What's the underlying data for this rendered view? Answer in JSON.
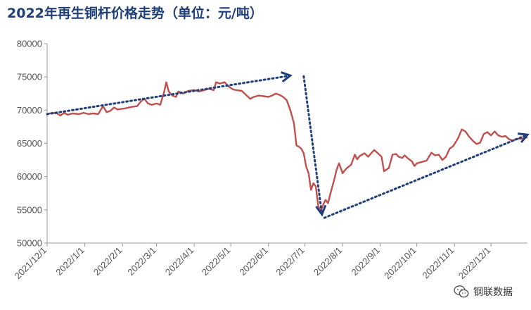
{
  "chart_data": {
    "type": "line",
    "title": "2022年再生铜杆价格走势（单位：元/吨）",
    "ylim": [
      50000,
      80000
    ],
    "yticks": [
      50000,
      55000,
      60000,
      65000,
      70000,
      75000,
      80000
    ],
    "xlim": [
      "2021-12-01",
      "2022-12-31"
    ],
    "xticks": [
      "2021/12/1",
      "2022/1/1",
      "2022/2/1",
      "2022/3/1",
      "2022/4/1",
      "2022/5/1",
      "2022/6/1",
      "2022/7/1",
      "2022/8/1",
      "2022/9/1",
      "2022/10/1",
      "2022/11/1",
      "2022/12/1"
    ],
    "series_color": "#c0504d",
    "trend_color": "#1f3f7a",
    "series": [
      {
        "points": [
          [
            "2021-12-01",
            69400
          ],
          [
            "2021-12-05",
            69600
          ],
          [
            "2021-12-09",
            69500
          ],
          [
            "2021-12-12",
            69200
          ],
          [
            "2021-12-15",
            69600
          ],
          [
            "2021-12-18",
            69300
          ],
          [
            "2021-12-22",
            69500
          ],
          [
            "2021-12-27",
            69400
          ],
          [
            "2021-12-31",
            69600
          ],
          [
            "2022-01-04",
            69400
          ],
          [
            "2022-01-08",
            69500
          ],
          [
            "2022-01-12",
            69400
          ],
          [
            "2022-01-16",
            70600
          ],
          [
            "2022-01-19",
            69700
          ],
          [
            "2022-01-22",
            69900
          ],
          [
            "2022-01-25",
            70400
          ],
          [
            "2022-01-28",
            70100
          ],
          [
            "2022-02-04",
            70300
          ],
          [
            "2022-02-09",
            70500
          ],
          [
            "2022-02-13",
            70600
          ],
          [
            "2022-02-16",
            71300
          ],
          [
            "2022-02-19",
            71700
          ],
          [
            "2022-02-22",
            71000
          ],
          [
            "2022-02-25",
            70800
          ],
          [
            "2022-03-01",
            71000
          ],
          [
            "2022-03-04",
            70800
          ],
          [
            "2022-03-07",
            72600
          ],
          [
            "2022-03-09",
            74200
          ],
          [
            "2022-03-11",
            72800
          ],
          [
            "2022-03-14",
            72200
          ],
          [
            "2022-03-17",
            72000
          ],
          [
            "2022-03-19",
            72800
          ],
          [
            "2022-03-23",
            72500
          ],
          [
            "2022-03-27",
            72900
          ],
          [
            "2022-04-01",
            73000
          ],
          [
            "2022-04-05",
            72800
          ],
          [
            "2022-04-09",
            73000
          ],
          [
            "2022-04-13",
            73200
          ],
          [
            "2022-04-17",
            73000
          ],
          [
            "2022-04-19",
            74200
          ],
          [
            "2022-04-22",
            74000
          ],
          [
            "2022-04-26",
            74200
          ],
          [
            "2022-04-29",
            73600
          ],
          [
            "2022-05-03",
            73100
          ],
          [
            "2022-05-06",
            73000
          ],
          [
            "2022-05-10",
            72900
          ],
          [
            "2022-05-13",
            72400
          ],
          [
            "2022-05-17",
            71700
          ],
          [
            "2022-05-20",
            72000
          ],
          [
            "2022-05-24",
            72200
          ],
          [
            "2022-05-28",
            72100
          ],
          [
            "2022-06-01",
            72000
          ],
          [
            "2022-06-04",
            72200
          ],
          [
            "2022-06-07",
            72500
          ],
          [
            "2022-06-10",
            72300
          ],
          [
            "2022-06-13",
            72000
          ],
          [
            "2022-06-16",
            71500
          ],
          [
            "2022-06-19",
            70000
          ],
          [
            "2022-06-22",
            68000
          ],
          [
            "2022-06-24",
            64700
          ],
          [
            "2022-06-26",
            64500
          ],
          [
            "2022-06-28",
            64200
          ],
          [
            "2022-06-30",
            63500
          ],
          [
            "2022-07-02",
            61500
          ],
          [
            "2022-07-04",
            60500
          ],
          [
            "2022-07-06",
            58000
          ],
          [
            "2022-07-08",
            59000
          ],
          [
            "2022-07-10",
            58500
          ],
          [
            "2022-07-12",
            55500
          ],
          [
            "2022-07-14",
            54800
          ],
          [
            "2022-07-16",
            55800
          ],
          [
            "2022-07-18",
            56500
          ],
          [
            "2022-07-20",
            56000
          ],
          [
            "2022-07-22",
            57500
          ],
          [
            "2022-07-25",
            59500
          ],
          [
            "2022-07-27",
            61000
          ],
          [
            "2022-07-29",
            62000
          ],
          [
            "2022-08-01",
            60500
          ],
          [
            "2022-08-04",
            61200
          ],
          [
            "2022-08-08",
            61800
          ],
          [
            "2022-08-11",
            63300
          ],
          [
            "2022-08-13",
            62600
          ],
          [
            "2022-08-15",
            63100
          ],
          [
            "2022-08-19",
            63500
          ],
          [
            "2022-08-22",
            63000
          ],
          [
            "2022-08-24",
            63400
          ],
          [
            "2022-08-27",
            64000
          ],
          [
            "2022-08-30",
            63500
          ],
          [
            "2022-09-02",
            63000
          ],
          [
            "2022-09-04",
            60800
          ],
          [
            "2022-09-08",
            61300
          ],
          [
            "2022-09-11",
            63300
          ],
          [
            "2022-09-14",
            63400
          ],
          [
            "2022-09-16",
            63000
          ],
          [
            "2022-09-19",
            62800
          ],
          [
            "2022-09-21",
            63200
          ],
          [
            "2022-09-24",
            62700
          ],
          [
            "2022-09-27",
            62300
          ],
          [
            "2022-09-29",
            61600
          ],
          [
            "2022-10-01",
            62000
          ],
          [
            "2022-10-05",
            62200
          ],
          [
            "2022-10-09",
            62400
          ],
          [
            "2022-10-13",
            63600
          ],
          [
            "2022-10-16",
            63200
          ],
          [
            "2022-10-19",
            63300
          ],
          [
            "2022-10-22",
            62500
          ],
          [
            "2022-10-25",
            63000
          ],
          [
            "2022-10-28",
            64200
          ],
          [
            "2022-10-31",
            64600
          ],
          [
            "2022-11-04",
            65800
          ],
          [
            "2022-11-07",
            67100
          ],
          [
            "2022-11-10",
            66800
          ],
          [
            "2022-11-13",
            66000
          ],
          [
            "2022-11-16",
            65400
          ],
          [
            "2022-11-19",
            64900
          ],
          [
            "2022-11-22",
            65100
          ],
          [
            "2022-11-25",
            66400
          ],
          [
            "2022-11-28",
            66700
          ],
          [
            "2022-12-01",
            66200
          ],
          [
            "2022-12-04",
            66800
          ],
          [
            "2022-12-07",
            66200
          ],
          [
            "2022-12-10",
            66000
          ],
          [
            "2022-12-13",
            66100
          ],
          [
            "2022-12-16",
            65600
          ],
          [
            "2022-12-19",
            65400
          ],
          [
            "2022-12-22",
            65700
          ],
          [
            "2022-12-26",
            65700
          ],
          [
            "2022-12-31",
            65900
          ]
        ]
      }
    ],
    "annotations": [
      {
        "type": "dotted-arrow",
        "from": [
          "2021-12-01",
          69400
        ],
        "to": [
          "2022-06-19",
          75200
        ]
      },
      {
        "type": "dotted-arrow",
        "from": [
          "2022-06-30",
          75100
        ],
        "to": [
          "2022-07-15",
          54300
        ]
      },
      {
        "type": "dotted-arrow",
        "from": [
          "2022-07-17",
          53800
        ],
        "to": [
          "2022-12-31",
          66300
        ]
      }
    ]
  },
  "watermark": {
    "icon": "wechat-icon",
    "text": "钢联数据"
  }
}
